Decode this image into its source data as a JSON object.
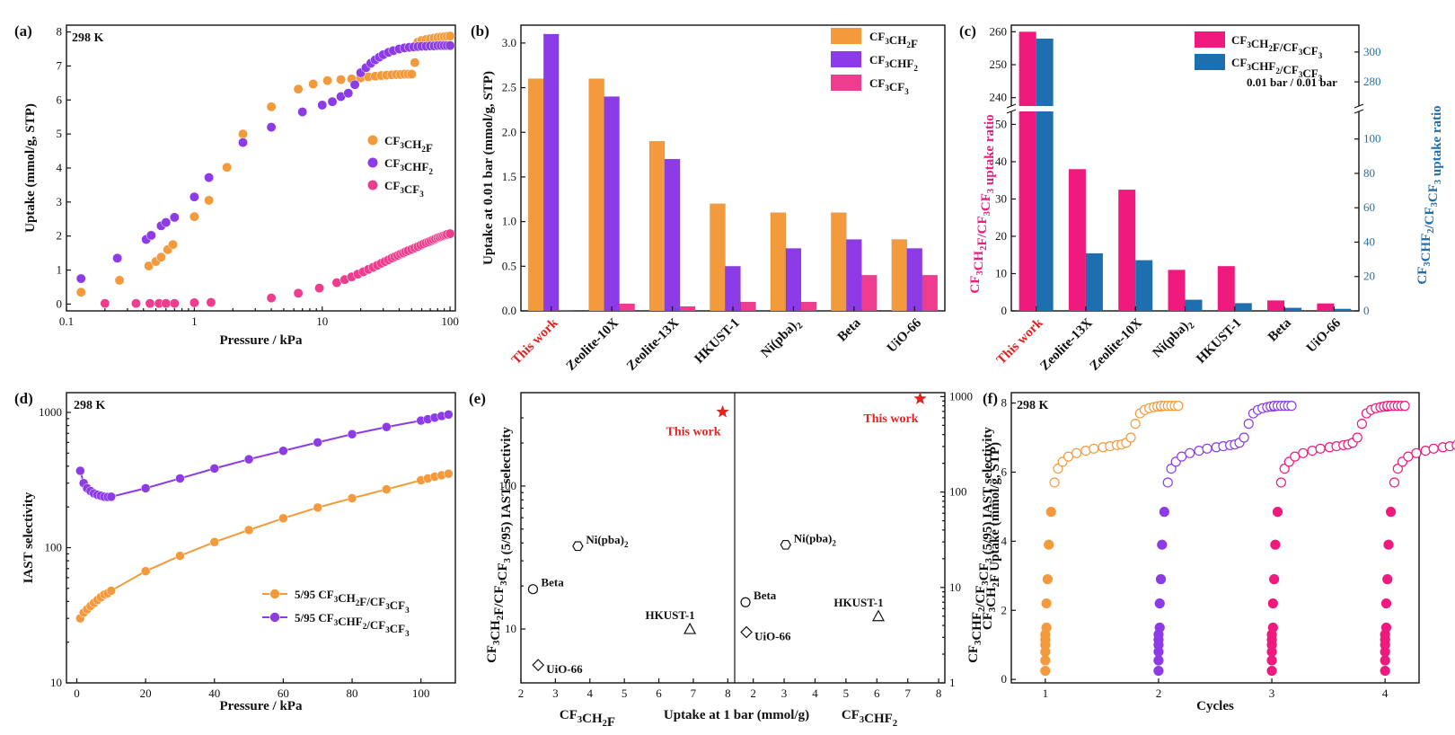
{
  "colors": {
    "orange": "#f39a3c",
    "purple": "#8c3be6",
    "pink": "#ee3c8f",
    "blue": "#1e6fb0",
    "magenta": "#f0197d",
    "red": "#e3231f"
  },
  "chart_data": [
    {
      "panel": "(a)",
      "type": "scatter",
      "annotation": "298 K",
      "xlabel": "Pressure / kPa",
      "ylabel": "Uptake (mmol/g, STP)",
      "xscale": "log",
      "xlim": [
        0.1,
        110
      ],
      "ylim": [
        -0.2,
        8.2
      ],
      "xticks": [
        "0.1",
        "1",
        "10",
        "100"
      ],
      "yticks": [
        "0",
        "1",
        "2",
        "3",
        "4",
        "5",
        "6",
        "7",
        "8"
      ],
      "series": [
        {
          "name": "CF3CH2F",
          "label_parts": [
            [
              "CF",
              "3"
            ],
            [
              "CH",
              "2"
            ],
            [
              "F",
              ""
            ]
          ],
          "color": "#f39a3c",
          "x": [
            0.13,
            0.26,
            0.44,
            0.5,
            0.55,
            0.62,
            0.68,
            1.0,
            1.3,
            1.8,
            2.4,
            4.0,
            6.5,
            8.5,
            11,
            14,
            17,
            20,
            23,
            26,
            29,
            32,
            35,
            38,
            41,
            44,
            47,
            50,
            53,
            56,
            60,
            65,
            70,
            75,
            80,
            85,
            90,
            95,
            100
          ],
          "y": [
            0.35,
            0.7,
            1.12,
            1.25,
            1.38,
            1.6,
            1.75,
            2.57,
            3.05,
            4.02,
            5.0,
            5.8,
            6.32,
            6.47,
            6.57,
            6.6,
            6.62,
            6.65,
            6.68,
            6.7,
            6.72,
            6.73,
            6.74,
            6.75,
            6.75,
            6.76,
            6.76,
            6.76,
            7.1,
            7.7,
            7.75,
            7.78,
            7.8,
            7.82,
            7.84,
            7.85,
            7.86,
            7.87,
            7.88
          ]
        },
        {
          "name": "CF3CHF2",
          "label_parts": [
            [
              "CF",
              "3"
            ],
            [
              "CHF",
              "2"
            ],
            [
              "",
              ""
            ]
          ],
          "color": "#8c3be6",
          "x": [
            0.13,
            0.25,
            0.42,
            0.46,
            0.55,
            0.6,
            0.7,
            1.0,
            1.3,
            2.4,
            4.0,
            7.0,
            10,
            12,
            14,
            16,
            18,
            20,
            22,
            24,
            26,
            28,
            30,
            33,
            36,
            40,
            44,
            48,
            52,
            56,
            60,
            65,
            70,
            75,
            80,
            85,
            90,
            95,
            100
          ],
          "y": [
            0.75,
            1.35,
            1.9,
            2.02,
            2.3,
            2.4,
            2.55,
            3.15,
            3.72,
            4.75,
            5.2,
            5.65,
            5.85,
            5.95,
            6.1,
            6.2,
            6.45,
            6.8,
            6.95,
            7.08,
            7.18,
            7.26,
            7.33,
            7.4,
            7.45,
            7.5,
            7.53,
            7.55,
            7.56,
            7.57,
            7.58,
            7.58,
            7.59,
            7.59,
            7.6,
            7.6,
            7.6,
            7.6,
            7.6
          ]
        },
        {
          "name": "CF3CF3",
          "label_parts": [
            [
              "CF",
              "3"
            ],
            [
              "CF",
              "3"
            ],
            [
              "",
              ""
            ]
          ],
          "color": "#ee3c8f",
          "x": [
            0.2,
            0.35,
            0.45,
            0.53,
            0.6,
            0.7,
            1.0,
            1.35,
            4.0,
            6.5,
            9.5,
            13,
            15,
            17,
            19,
            21,
            23,
            25,
            27,
            29,
            31,
            33,
            35,
            37,
            39,
            41,
            43,
            45,
            47,
            50,
            53,
            56,
            59,
            62,
            65,
            68,
            71,
            74,
            77,
            80,
            83,
            86,
            89,
            92,
            95,
            100
          ],
          "y": [
            0.02,
            0.02,
            0.02,
            0.02,
            0.02,
            0.02,
            0.04,
            0.05,
            0.18,
            0.32,
            0.47,
            0.63,
            0.72,
            0.8,
            0.88,
            0.95,
            1.02,
            1.08,
            1.14,
            1.2,
            1.25,
            1.3,
            1.35,
            1.39,
            1.43,
            1.47,
            1.5,
            1.54,
            1.57,
            1.61,
            1.65,
            1.69,
            1.73,
            1.77,
            1.8,
            1.83,
            1.86,
            1.89,
            1.92,
            1.95,
            1.97,
            1.99,
            2.01,
            2.03,
            2.05,
            2.07
          ]
        }
      ]
    },
    {
      "panel": "(b)",
      "type": "bar",
      "ylabel": "Uptake at 0.01 bar (mmol/g, STP)",
      "ylim": [
        0,
        3.2
      ],
      "yticks": [
        "0.0",
        "0.5",
        "1.0",
        "1.5",
        "2.0",
        "2.5",
        "3.0"
      ],
      "categories": [
        "This work",
        "Zeolite-10X",
        "Zeolite-13X",
        "HKUST-1",
        "Ni(pba)2",
        "Beta",
        "UiO-66"
      ],
      "series": [
        {
          "name": "CF3CH2F",
          "label_parts": [
            [
              "CF",
              "3"
            ],
            [
              "CH",
              "2"
            ],
            [
              "F",
              ""
            ]
          ],
          "color": "#f39a3c",
          "values": [
            2.6,
            2.6,
            1.9,
            1.2,
            1.1,
            1.1,
            0.8
          ]
        },
        {
          "name": "CF3CHF2",
          "label_parts": [
            [
              "CF",
              "3"
            ],
            [
              "CHF",
              "2"
            ],
            [
              "",
              ""
            ]
          ],
          "color": "#8c3be6",
          "values": [
            3.1,
            2.4,
            1.7,
            0.5,
            0.7,
            0.8,
            0.7
          ]
        },
        {
          "name": "CF3CF3",
          "label_parts": [
            [
              "CF",
              "3"
            ],
            [
              "CF",
              "3"
            ],
            [
              "",
              ""
            ]
          ],
          "color": "#ee3c8f",
          "values": [
            0.01,
            0.08,
            0.05,
            0.1,
            0.1,
            0.4,
            0.4
          ]
        }
      ]
    },
    {
      "panel": "(c)",
      "type": "bar",
      "note": "0.01 bar / 0.01 bar",
      "ylabel_left": "CF3CH2F/CF3CF3 uptake ratio",
      "ylabel_right": "CF3CHF2/CF3CF3 uptake ratio",
      "left_axis_lower": [
        0,
        53
      ],
      "left_axis_upper": [
        238,
        262
      ],
      "right_axis_lower": [
        0,
        115
      ],
      "right_axis_upper": [
        265,
        318
      ],
      "left_yticks_lower": [
        "0",
        "10",
        "20",
        "30",
        "40",
        "50"
      ],
      "left_yticks_upper": [
        "240",
        "250",
        "260"
      ],
      "right_yticks_lower": [
        "0",
        "20",
        "40",
        "60",
        "80",
        "100"
      ],
      "right_yticks_upper": [
        "280",
        "300"
      ],
      "categories": [
        "This work",
        "Zeolite-13X",
        "Zeolite-10X",
        "Ni(pba)2",
        "HKUST-1",
        "Beta",
        "UiO-66"
      ],
      "series": [
        {
          "name": "CF3CH2F/CF3CF3",
          "label_parts": [
            [
              "CF",
              "3"
            ],
            [
              "CH",
              "2"
            ],
            [
              "F/CF",
              "3"
            ],
            [
              "CF",
              "3"
            ]
          ],
          "color": "#f0197d",
          "axis": "left",
          "values": [
            260,
            38,
            32.5,
            11,
            12,
            2.8,
            2
          ]
        },
        {
          "name": "CF3CHF2/CF3CF3",
          "label_parts": [
            [
              "CF",
              "3"
            ],
            [
              "CHF",
              "2"
            ],
            [
              "/CF",
              "3"
            ],
            [
              "CF",
              "3"
            ]
          ],
          "color": "#1e6fb0",
          "axis": "right",
          "values": [
            309,
            33.5,
            29.5,
            6.5,
            4.5,
            1.8,
            1.2
          ]
        }
      ]
    },
    {
      "panel": "(d)",
      "type": "line",
      "annotation": "298 K",
      "xlabel": "Pressure / kPa",
      "ylabel": "IAST selectivity",
      "yscale": "log",
      "xlim": [
        -3,
        110
      ],
      "ylim": [
        10,
        1400
      ],
      "xticks": [
        "0",
        "20",
        "40",
        "60",
        "80",
        "100"
      ],
      "yticks": [
        "10",
        "100",
        "1000"
      ],
      "series": [
        {
          "name": "5/95 CF3CH2F/CF3CF3",
          "label_parts": [
            [
              "5/95 CF",
              "3"
            ],
            [
              "CH",
              "2"
            ],
            [
              "F/CF",
              "3"
            ],
            [
              "CF",
              "3"
            ]
          ],
          "color": "#f39a3c",
          "x": [
            1,
            2,
            3,
            4,
            5,
            6,
            7,
            8,
            9,
            10,
            20,
            30,
            40,
            50,
            60,
            70,
            80,
            90,
            100,
            102,
            104,
            106,
            108
          ],
          "y": [
            30,
            33,
            35,
            37,
            39,
            41,
            43,
            45,
            46,
            48,
            67,
            87,
            110,
            135,
            165,
            198,
            232,
            270,
            315,
            325,
            335,
            343,
            352
          ]
        },
        {
          "name": "5/95 CF3CHF2/CF3CF3",
          "label_parts": [
            [
              "5/95 CF",
              "3"
            ],
            [
              "CHF",
              "2"
            ],
            [
              "/CF",
              "3"
            ],
            [
              "CF",
              "3"
            ]
          ],
          "color": "#8c3be6",
          "x": [
            1,
            2,
            3,
            4,
            5,
            6,
            7,
            8,
            9,
            10,
            20,
            30,
            40,
            50,
            60,
            70,
            80,
            90,
            100,
            102,
            104,
            106,
            108
          ],
          "y": [
            370,
            300,
            275,
            262,
            252,
            246,
            242,
            238,
            237,
            238,
            275,
            325,
            385,
            450,
            520,
            600,
            690,
            780,
            870,
            890,
            915,
            940,
            965
          ]
        }
      ]
    },
    {
      "panel": "(e)",
      "type": "scatter",
      "xlabel": "Uptake at 1 bar (mmol/g)",
      "xlabel_left": "CF3CH2F",
      "xlabel_right": "CF3CHF2",
      "ylabel_left": "CF3CH2F/CF3CF3 (5/95) IAST selectivity",
      "ylabel_right": "CF3CHF2/CF3CF3 (5/95) IAST selectivity",
      "left": {
        "xlim": [
          2,
          8.2
        ],
        "yscale": "log",
        "ylim": [
          4.2,
          450
        ],
        "xticks": [
          "2",
          "3",
          "4",
          "5",
          "6",
          "7",
          "8"
        ],
        "yticks": [
          "10",
          "100"
        ],
        "points": [
          {
            "label": "This work",
            "x": 7.85,
            "y": 330,
            "marker": "star"
          },
          {
            "label": "Ni(pba)2",
            "x": 3.65,
            "y": 38,
            "marker": "hexagon"
          },
          {
            "label": "Beta",
            "x": 2.35,
            "y": 19,
            "marker": "circle"
          },
          {
            "label": "HKUST-1",
            "x": 6.9,
            "y": 10,
            "marker": "triangle"
          },
          {
            "label": "UiO-66",
            "x": 2.5,
            "y": 5.6,
            "marker": "diamond"
          }
        ]
      },
      "right": {
        "xlim": [
          1.4,
          8.2
        ],
        "yscale": "log",
        "ylim": [
          1,
          1100
        ],
        "xticks": [
          "2",
          "3",
          "4",
          "5",
          "6",
          "7",
          "8"
        ],
        "yticks": [
          "1",
          "10",
          "100",
          "1000"
        ],
        "points": [
          {
            "label": "This work",
            "x": 7.4,
            "y": 950,
            "marker": "star"
          },
          {
            "label": "Ni(pba)2",
            "x": 3.05,
            "y": 28,
            "marker": "hexagon"
          },
          {
            "label": "Beta",
            "x": 1.75,
            "y": 7,
            "marker": "circle"
          },
          {
            "label": "HKUST-1",
            "x": 6.05,
            "y": 5,
            "marker": "triangle"
          },
          {
            "label": "UiO-66",
            "x": 1.78,
            "y": 3.4,
            "marker": "diamond"
          }
        ]
      }
    },
    {
      "panel": "(f)",
      "type": "scatter",
      "annotation": "298 K",
      "xlabel": "Cycles",
      "ylabel": "CF3CH2F Uptake (mmol/g, STP)",
      "xlim": [
        0.7,
        4.3
      ],
      "ylim": [
        -0.1,
        8.3
      ],
      "xticks": [
        "1",
        "2",
        "3",
        "4"
      ],
      "yticks": [
        "0",
        "2",
        "4",
        "6",
        "8"
      ],
      "cycles": [
        {
          "cycle": 1,
          "color": "#f39a3c"
        },
        {
          "cycle": 2,
          "color": "#8c3be6"
        },
        {
          "cycle": 3,
          "color": "#f0197d"
        },
        {
          "cycle": 4,
          "color": "#f0197d"
        }
      ],
      "profile_fraction": [
        0.0,
        0.0,
        0.0,
        0.0,
        0.0,
        0.0,
        0.01,
        0.01,
        0.02,
        0.03,
        0.05,
        0.08,
        0.11,
        0.15,
        0.2,
        0.27,
        0.35,
        0.42,
        0.5,
        0.56,
        0.62,
        0.66,
        0.7,
        0.74,
        0.78,
        0.82,
        0.86,
        0.9,
        0.94,
        0.97,
        1.0
      ],
      "profile_uptake": [
        0.25,
        0.55,
        0.8,
        1.0,
        1.15,
        1.3,
        1.5,
        2.2,
        2.9,
        3.9,
        4.85,
        5.7,
        6.1,
        6.3,
        6.45,
        6.55,
        6.62,
        6.68,
        6.72,
        6.75,
        6.78,
        6.8,
        6.85,
        7.0,
        7.4,
        7.7,
        7.8,
        7.85,
        7.88,
        7.9,
        7.9
      ]
    }
  ]
}
